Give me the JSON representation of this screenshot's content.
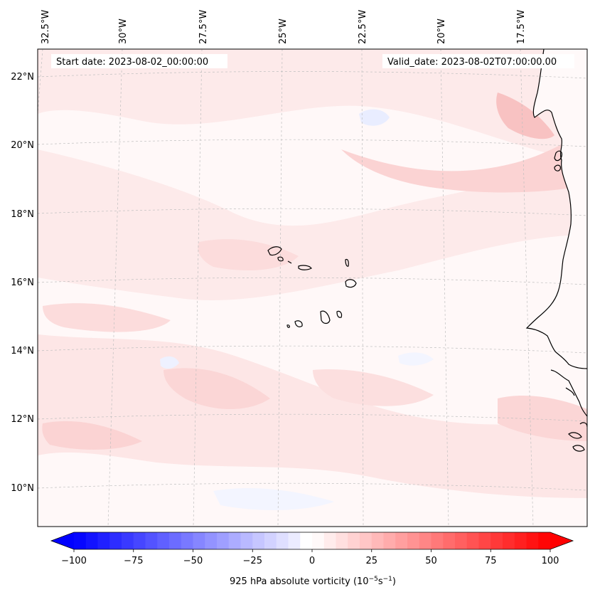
{
  "map": {
    "start_label": "Start date: 2023-08-02_00:00:00",
    "valid_label": "Valid_date: 2023-08-02T07:00:00.00",
    "lon_ticks": [
      "32.5°W",
      "30°W",
      "27.5°W",
      "25°W",
      "22.5°W",
      "20°W",
      "17.5°W"
    ],
    "lat_ticks": [
      "22°N",
      "20°N",
      "18°N",
      "16°N",
      "14°N",
      "12°N",
      "10°N"
    ],
    "field_colors": {
      "weak_positive": "#fde6e6",
      "moderate_positive": "#fbd2d2",
      "strong_positive": "#f7b9b9",
      "weak_negative": "#eef1ff",
      "background": "#fff8f8"
    },
    "coastline_color": "#000000",
    "gridline_color": "#bfbfbf"
  },
  "colorbar": {
    "label_prefix": "925 hPa absolute vorticity (10",
    "label_exp1": "−5",
    "label_mid": "s",
    "label_exp2": "−1",
    "label_suffix": ")",
    "min": -100,
    "max": 100,
    "ticks": [
      {
        "value": -100,
        "label": "−100"
      },
      {
        "value": -75,
        "label": "−75"
      },
      {
        "value": -50,
        "label": "−50"
      },
      {
        "value": -25,
        "label": "−25"
      },
      {
        "value": 0,
        "label": "0"
      },
      {
        "value": 25,
        "label": "25"
      },
      {
        "value": 50,
        "label": "50"
      },
      {
        "value": 75,
        "label": "75"
      },
      {
        "value": 100,
        "label": "100"
      }
    ],
    "levels": 40,
    "neg_color": "#0000ff",
    "pos_color": "#ff0000"
  }
}
